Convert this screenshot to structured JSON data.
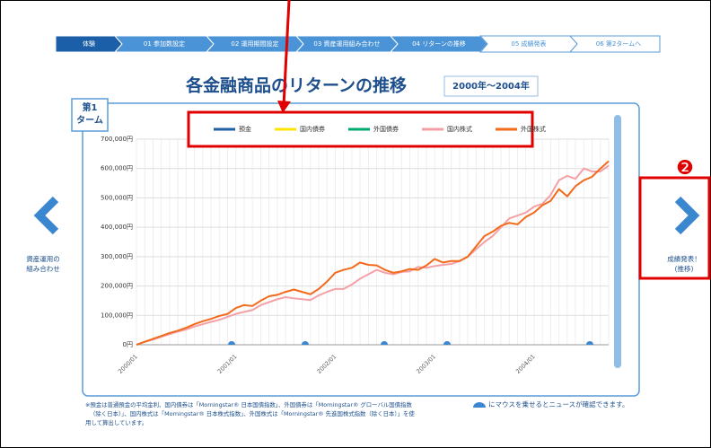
{
  "steps": [
    "体験",
    "01 参加数設定",
    "02 運用期間設定",
    "03 資産運用組み合わせ",
    "04 リターンの推移",
    "05 成績発表",
    "06 第2タームへ"
  ],
  "title": "各金融商品のリターンの推移",
  "period": "2000年～2004年",
  "tab": [
    "第1",
    "ターム"
  ],
  "prev_nav": [
    "資産運用の",
    "組み合わせ"
  ],
  "next_nav": [
    "成績発表！",
    "(推移)"
  ],
  "annotation_number": "❷",
  "footnote": [
    "※預金は普通預金の平均金利、国内債券は「Morningstar® 日本国債指数」、外国債券は「Morningstar® グローバル国債指数",
    "（除く日本）」、国内株式は「Morningstar® 日本株式指数」、外国株式は「Morningstar® 先進国株式指数（除く日本）」を使",
    "用して算出しています。"
  ],
  "hover_hint": "にマウスを乗せるとニュースが確認できます。",
  "chart_data": {
    "type": "line",
    "categories": [
      "2000/01",
      null,
      null,
      null,
      null,
      null,
      null,
      null,
      null,
      null,
      null,
      null,
      "2001/01",
      null,
      null,
      null,
      null,
      null,
      null,
      null,
      null,
      null,
      null,
      null,
      "2002/01",
      null,
      null,
      null,
      null,
      null,
      null,
      null,
      null,
      null,
      null,
      null,
      "2003/01",
      null,
      null,
      null,
      null,
      null,
      null,
      null,
      null,
      null,
      null,
      null,
      "2004/01",
      null,
      null,
      null,
      null,
      null,
      null,
      null,
      null,
      null
    ],
    "series": [
      {
        "name": "預金",
        "color": "#1f5fa8"
      },
      {
        "name": "国内債券",
        "color": "#ffe400"
      },
      {
        "name": "外国債券",
        "color": "#00a86b"
      },
      {
        "name": "国内株式",
        "color": "#f4a0a6",
        "values": [
          0,
          10000,
          18000,
          27000,
          36000,
          45000,
          52000,
          62000,
          70000,
          78000,
          85000,
          95000,
          105000,
          112000,
          118000,
          135000,
          145000,
          155000,
          162000,
          158000,
          155000,
          152000,
          168000,
          180000,
          190000,
          190000,
          205000,
          225000,
          240000,
          255000,
          245000,
          240000,
          248000,
          250000,
          265000,
          262000,
          268000,
          272000,
          275000,
          285000,
          300000,
          325000,
          350000,
          370000,
          400000,
          430000,
          440000,
          450000,
          470000,
          480000,
          510000,
          560000,
          575000,
          565000,
          600000,
          590000,
          590000,
          610000
        ]
      },
      {
        "name": "外国株式",
        "color": "#f26a1b",
        "values": [
          0,
          10000,
          20000,
          30000,
          40000,
          48000,
          58000,
          70000,
          80000,
          88000,
          98000,
          105000,
          125000,
          135000,
          132000,
          150000,
          165000,
          170000,
          180000,
          188000,
          180000,
          172000,
          190000,
          215000,
          245000,
          255000,
          262000,
          280000,
          272000,
          270000,
          255000,
          245000,
          250000,
          258000,
          255000,
          270000,
          292000,
          280000,
          285000,
          285000,
          300000,
          335000,
          370000,
          385000,
          405000,
          415000,
          410000,
          435000,
          450000,
          475000,
          490000,
          530000,
          505000,
          540000,
          560000,
          572000,
          600000,
          625000
        ]
      }
    ],
    "ylim": [
      0,
      700000
    ],
    "yticks": [
      {
        "value": 0,
        "label": "0円"
      },
      {
        "value": 100000,
        "label": "100,000円"
      },
      {
        "value": 200000,
        "label": "200,000円"
      },
      {
        "value": 300000,
        "label": "300,000円"
      },
      {
        "value": 400000,
        "label": "400,000円"
      },
      {
        "value": 500000,
        "label": "500,000円"
      },
      {
        "value": 600000,
        "label": "600,000円"
      },
      {
        "value": 700000,
        "label": "700,000円"
      }
    ],
    "grid": true
  }
}
